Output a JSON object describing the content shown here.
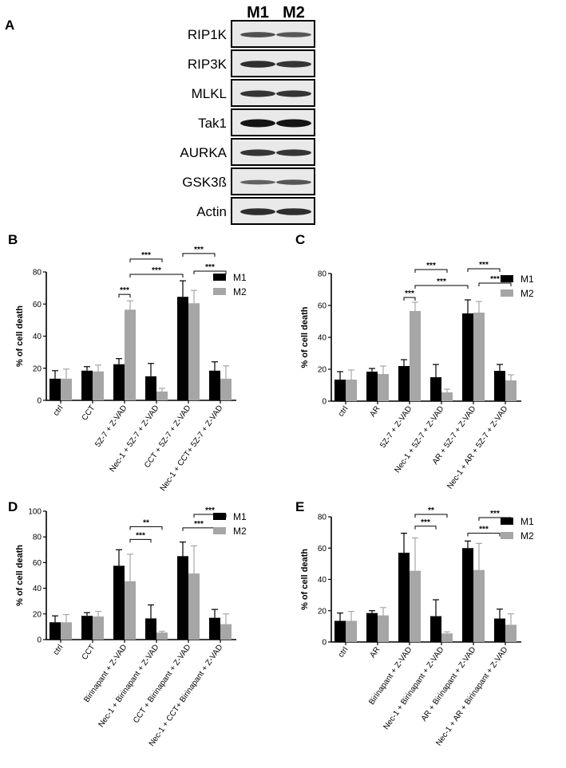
{
  "panel_a": {
    "label": "A",
    "lanes": [
      "M1",
      "M2"
    ],
    "blots": [
      {
        "name": "RIP1K",
        "intensity": [
          0.55,
          0.5
        ]
      },
      {
        "name": "RIP3K",
        "intensity": [
          0.8,
          0.75
        ]
      },
      {
        "name": "MLKL",
        "intensity": [
          0.75,
          0.75
        ]
      },
      {
        "name": "Tak1",
        "intensity": [
          1.0,
          1.0
        ]
      },
      {
        "name": "AURKA",
        "intensity": [
          0.75,
          0.75
        ]
      },
      {
        "name": "GSK3ß",
        "intensity": [
          0.4,
          0.5
        ]
      },
      {
        "name": "Actin",
        "intensity": [
          0.8,
          0.8
        ]
      }
    ]
  },
  "chart_data": [
    {
      "panel": "B",
      "type": "bar",
      "ylabel": "% of cell death",
      "ylim": [
        0,
        80
      ],
      "yticks": [
        0,
        20,
        40,
        60,
        80
      ],
      "categories": [
        "ctrl",
        "CCT",
        "5Z-7 + Z-VAD",
        "Nec-1 + 5Z-7 + Z-VAD",
        "CCT + 5Z-7 + Z-VAD",
        "Nec-1 + CCT+ 5Z-7 + Z-VAD"
      ],
      "series": [
        {
          "name": "M1",
          "color": "#000000",
          "values": [
            13.5,
            18.5,
            22.5,
            15,
            64.5,
            18.5
          ],
          "errors": [
            5,
            2.5,
            3.5,
            8,
            10,
            5.5
          ]
        },
        {
          "name": "M2",
          "color": "#a6a6a6",
          "values": [
            13.5,
            18,
            56.5,
            5.5,
            60.5,
            13.5
          ],
          "errors": [
            6,
            4,
            5.5,
            2,
            8,
            8
          ]
        }
      ],
      "significance": [
        {
          "from": 2,
          "fs": 0,
          "to": 2,
          "ts": 1,
          "label": "***",
          "y": 66
        },
        {
          "from": 2,
          "fs": 1,
          "to": 4,
          "ts": 0,
          "label": "***",
          "y": 78.5
        },
        {
          "from": 2,
          "fs": 1,
          "to": 3,
          "ts": 1,
          "label": "***",
          "y": 88
        },
        {
          "from": 4,
          "fs": 0,
          "to": 5,
          "ts": 0,
          "label": "***",
          "y": 91.5
        },
        {
          "from": 4,
          "fs": 1,
          "to": 5,
          "ts": 1,
          "label": "***",
          "y": 80.5
        }
      ],
      "legend_position": "top-right"
    },
    {
      "panel": "C",
      "type": "bar",
      "ylabel": "% of cell death",
      "ylim": [
        0,
        80
      ],
      "yticks": [
        0,
        20,
        40,
        60,
        80
      ],
      "categories": [
        "ctrl",
        "AR",
        "5Z-7 + Z-VAD",
        "Nec-1 + 5Z-7 + Z-VAD",
        "AR + 5Z-7 + Z-VAD",
        "Nec-1 + AR + 5Z-7 + Z-VAD"
      ],
      "series": [
        {
          "name": "M1",
          "color": "#000000",
          "values": [
            13.5,
            18.5,
            22,
            15,
            55,
            19
          ],
          "errors": [
            5,
            2,
            4,
            8,
            8.5,
            4
          ]
        },
        {
          "name": "M2",
          "color": "#a6a6a6",
          "values": [
            13.5,
            17,
            56.5,
            5.5,
            55.5,
            13
          ],
          "errors": [
            6,
            5,
            5.5,
            2,
            7,
            3.5
          ]
        }
      ],
      "significance": [
        {
          "from": 2,
          "fs": 0,
          "to": 2,
          "ts": 1,
          "label": "***",
          "y": 65
        },
        {
          "from": 2,
          "fs": 1,
          "to": 4,
          "ts": 0,
          "label": "***",
          "y": 72.5
        },
        {
          "from": 2,
          "fs": 1,
          "to": 3,
          "ts": 1,
          "label": "***",
          "y": 82.5
        },
        {
          "from": 4,
          "fs": 0,
          "to": 5,
          "ts": 0,
          "label": "***",
          "y": 83
        },
        {
          "from": 4,
          "fs": 1,
          "to": 5,
          "ts": 1,
          "label": "***",
          "y": 74
        }
      ],
      "legend_position": "top-right"
    },
    {
      "panel": "D",
      "type": "bar",
      "ylabel": "% of cell death",
      "ylim": [
        0,
        100
      ],
      "yticks": [
        0,
        20,
        40,
        60,
        80,
        100
      ],
      "categories": [
        "ctrl",
        "CCT",
        "Birinapant + Z-VAD",
        "Nec-1 + Birinapant + Z-VAD",
        "CCT + Birinapant + Z-VAD",
        "Nec-1 + CCT+ Birinapant + Z-VAD"
      ],
      "series": [
        {
          "name": "M1",
          "color": "#000000",
          "values": [
            13.5,
            18.5,
            57.5,
            16.5,
            65,
            17
          ],
          "errors": [
            5,
            2.5,
            12.5,
            10.5,
            11,
            6.5
          ]
        },
        {
          "name": "M2",
          "color": "#a6a6a6",
          "values": [
            13.5,
            18,
            45.5,
            5.5,
            51.5,
            12
          ],
          "errors": [
            6,
            4,
            21,
            1,
            21.5,
            8
          ]
        }
      ],
      "significance": [
        {
          "from": 2,
          "fs": 1,
          "to": 3,
          "ts": 0,
          "label": "***",
          "y": 78
        },
        {
          "from": 2,
          "fs": 1,
          "to": 3,
          "ts": 1,
          "label": "**",
          "y": 88
        },
        {
          "from": 4,
          "fs": 0,
          "to": 5,
          "ts": 0,
          "label": "***",
          "y": 87
        },
        {
          "from": 4,
          "fs": 1,
          "to": 5,
          "ts": 1,
          "label": "***",
          "y": 97.5
        }
      ],
      "legend_position": "top-right"
    },
    {
      "panel": "E",
      "type": "bar",
      "ylabel": "% of cell death",
      "ylim": [
        0,
        80
      ],
      "yticks": [
        0,
        20,
        40,
        60,
        80
      ],
      "categories": [
        "ctrl",
        "AR",
        "Birinapant + Z-VAD",
        "Nec-1 + Birinapant + Z-VAD",
        "AR + Birinapant + Z-VAD",
        "Nec-1 + AR + Birinapant + Z-VAD"
      ],
      "series": [
        {
          "name": "M1",
          "color": "#000000",
          "values": [
            13.5,
            18.5,
            57,
            16.5,
            60,
            15
          ],
          "errors": [
            5,
            1.5,
            12.5,
            10.5,
            4.5,
            6
          ]
        },
        {
          "name": "M2",
          "color": "#a6a6a6",
          "values": [
            13.5,
            17,
            45.5,
            5.5,
            46,
            11
          ],
          "errors": [
            6,
            5,
            21,
            1,
            17,
            7
          ]
        }
      ],
      "significance": [
        {
          "from": 2,
          "fs": 1,
          "to": 3,
          "ts": 0,
          "label": "***",
          "y": 74
        },
        {
          "from": 2,
          "fs": 1,
          "to": 3,
          "ts": 1,
          "label": "**",
          "y": 81.5
        },
        {
          "from": 4,
          "fs": 0,
          "to": 5,
          "ts": 0,
          "label": "***",
          "y": 69.5
        },
        {
          "from": 4,
          "fs": 1,
          "to": 5,
          "ts": 1,
          "label": "***",
          "y": 79.5
        }
      ],
      "legend_position": "top-right"
    }
  ]
}
